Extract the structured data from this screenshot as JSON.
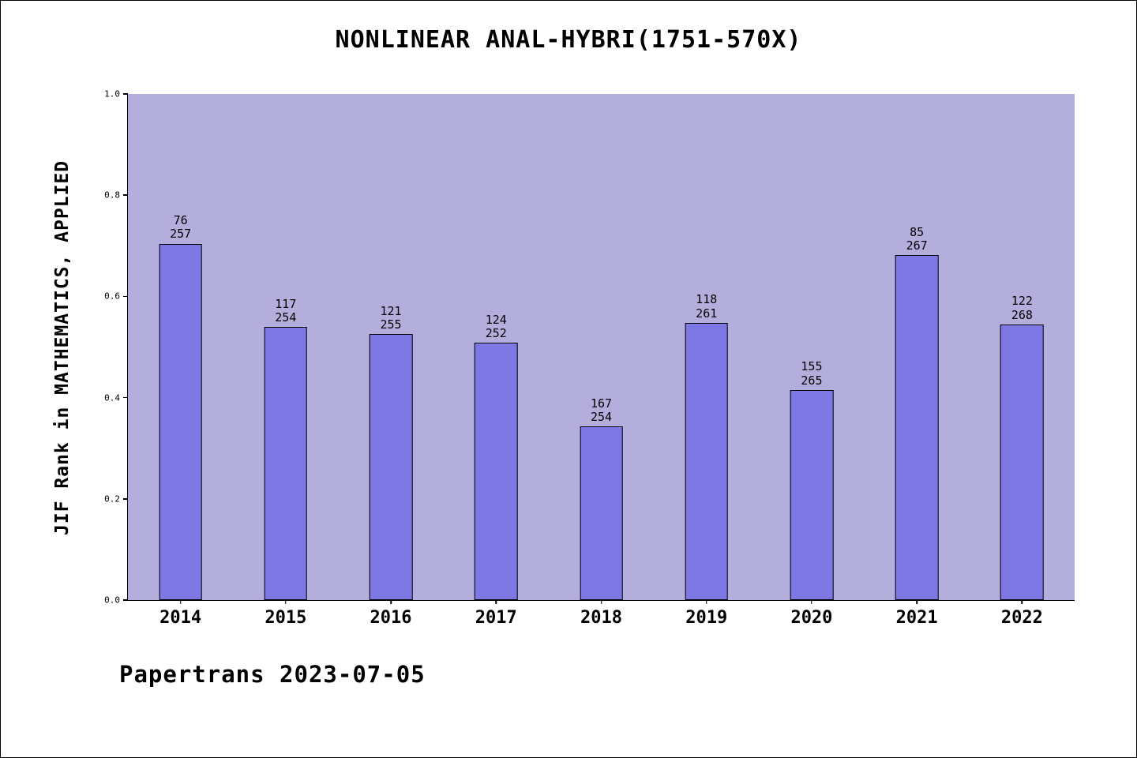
{
  "chart": {
    "title": "NONLINEAR ANAL-HYBRI(1751-570X)",
    "ylabel": "JIF Rank in MATHEMATICS, APPLIED",
    "footer": "Papertrans 2023-07-05"
  },
  "chart_data": {
    "type": "bar",
    "title": "NONLINEAR ANAL-HYBRI(1751-570X)",
    "xlabel": "",
    "ylabel": "JIF Rank in MATHEMATICS, APPLIED",
    "ylim": [
      0.0,
      1.0
    ],
    "yticks": [
      "0.0",
      "0.2",
      "0.4",
      "0.6",
      "0.8",
      "1.0"
    ],
    "grid": false,
    "legend": "none",
    "categories": [
      "2014",
      "2015",
      "2016",
      "2017",
      "2018",
      "2019",
      "2020",
      "2021",
      "2022"
    ],
    "bars": [
      {
        "year": "2014",
        "rank": 76,
        "total": 257,
        "value": 0.704
      },
      {
        "year": "2015",
        "rank": 117,
        "total": 254,
        "value": 0.539
      },
      {
        "year": "2016",
        "rank": 121,
        "total": 255,
        "value": 0.525
      },
      {
        "year": "2017",
        "rank": 124,
        "total": 252,
        "value": 0.508
      },
      {
        "year": "2018",
        "rank": 167,
        "total": 254,
        "value": 0.343
      },
      {
        "year": "2019",
        "rank": 118,
        "total": 261,
        "value": 0.548
      },
      {
        "year": "2020",
        "rank": 155,
        "total": 265,
        "value": 0.415
      },
      {
        "year": "2021",
        "rank": 85,
        "total": 267,
        "value": 0.682
      },
      {
        "year": "2022",
        "rank": 122,
        "total": 268,
        "value": 0.545
      }
    ],
    "colors": {
      "plot_background": "#b4aedd",
      "bar_fill": "#7d78e3",
      "bar_border": "#000000",
      "text": "#000000"
    }
  }
}
